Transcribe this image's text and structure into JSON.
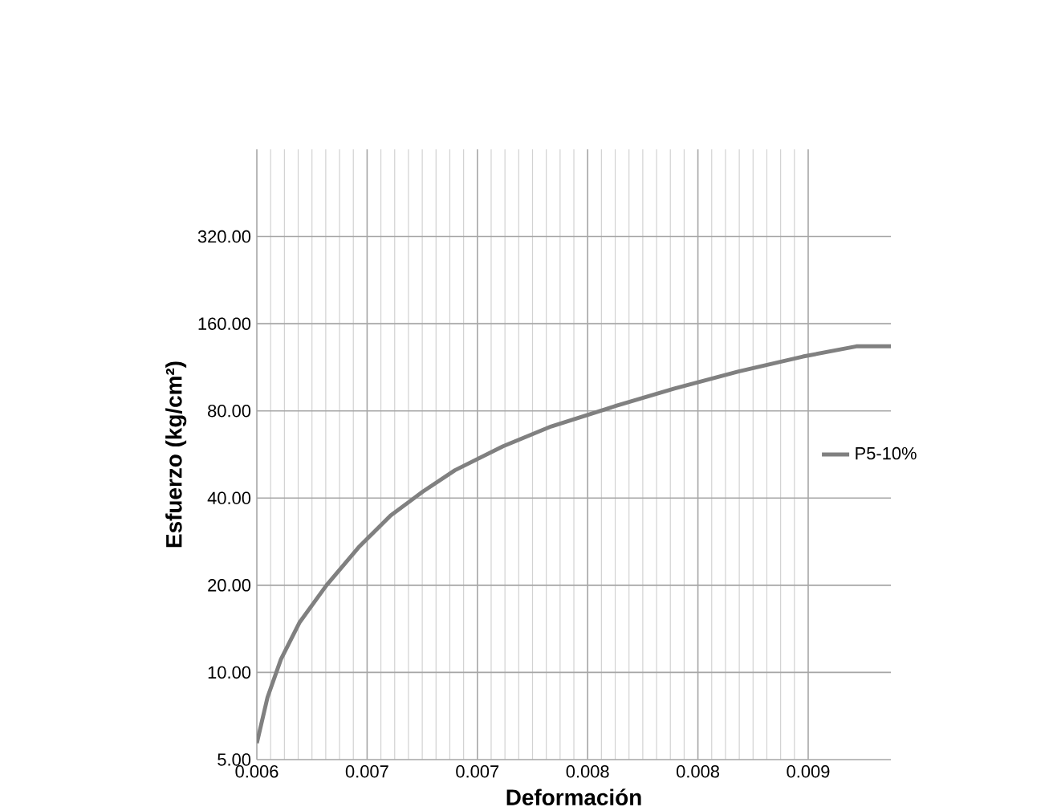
{
  "chart_data": {
    "type": "line",
    "xlabel": "Deformación",
    "ylabel": "Esfuerzo (kg/cm²)",
    "series": [
      {
        "name": "P5-10%",
        "color": "#808080",
        "x": [
          0.006,
          0.006058,
          0.006131,
          0.006233,
          0.006379,
          0.006553,
          0.006728,
          0.006903,
          0.007078,
          0.00734,
          0.007602,
          0.007951,
          0.008272,
          0.008621,
          0.008971,
          0.009262,
          0.00945
        ],
        "values": [
          5.7,
          8.2,
          11.1,
          14.9,
          20.0,
          27.0,
          34.8,
          42.1,
          49.9,
          60.4,
          70.7,
          83.1,
          95.5,
          109.4,
          123.2,
          133.6,
          133.6
        ]
      }
    ],
    "xlim": [
      0.006,
      0.00945
    ],
    "xticks": [
      0.006,
      {
        "value": 0.0066,
        "label": "0.007"
      },
      {
        "value": 0.0072,
        "label": "0.007"
      },
      {
        "value": 0.0078,
        "label": "0.008"
      },
      {
        "value": 0.0084,
        "label": "0.008"
      },
      {
        "value": 0.009,
        "label": "0.009"
      }
    ],
    "ylim": [
      5,
      640
    ],
    "yticks": [
      {
        "value": 5,
        "label": "5.00"
      },
      {
        "value": 10,
        "label": "10.00"
      },
      {
        "value": 20,
        "label": "20.00"
      },
      {
        "value": 40,
        "label": "40.00"
      },
      {
        "value": 80,
        "label": "80.00"
      },
      {
        "value": 160,
        "label": "160.00"
      },
      {
        "value": 320,
        "label": "320.00"
      }
    ],
    "log": "y",
    "grid": true,
    "legend": "right",
    "marker": "none",
    "line_style": "solid"
  }
}
